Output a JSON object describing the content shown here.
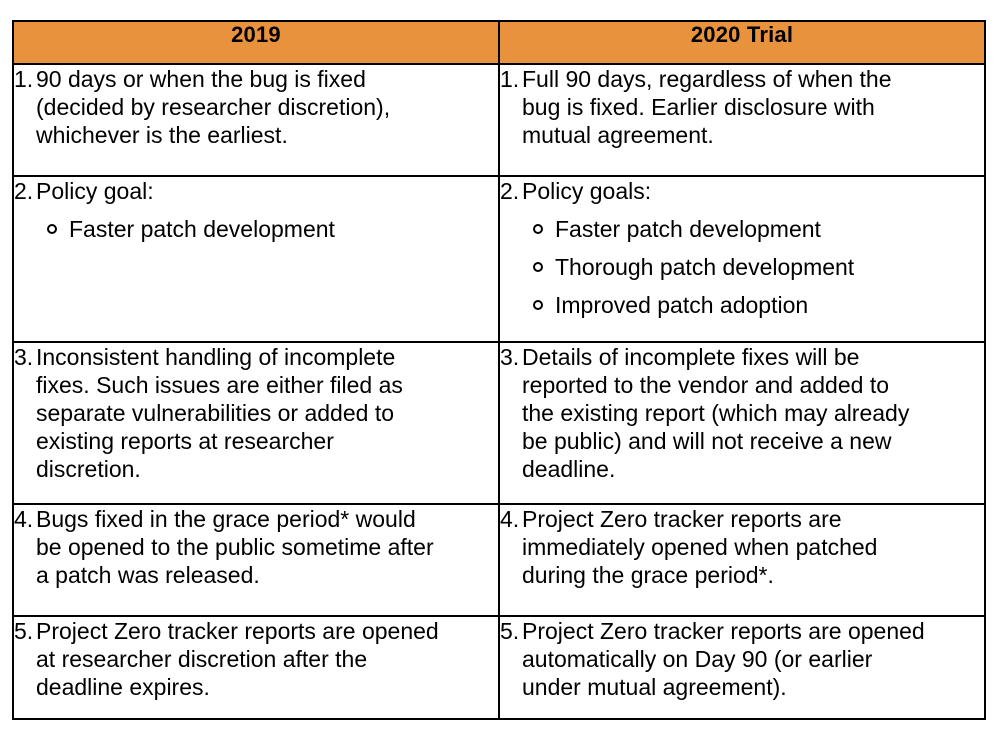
{
  "colors": {
    "header_bg": "#E8923D",
    "border": "#000000",
    "text": "#000000",
    "page_bg": "#FFFFFF"
  },
  "table": {
    "columns": [
      {
        "label": "2019"
      },
      {
        "label": "2020 Trial"
      }
    ],
    "rows": [
      {
        "left": {
          "num": "1.",
          "text": "90 days or when the bug is fixed\n(decided by researcher discretion),\nwhichever is the earliest."
        },
        "right": {
          "num": "1.",
          "text": "Full 90 days, regardless of when the\nbug is fixed. Earlier disclosure with\nmutual agreement."
        }
      },
      {
        "left": {
          "num": "2.",
          "text": "Policy goal:",
          "bullets": [
            "Faster patch development"
          ]
        },
        "right": {
          "num": "2.",
          "text": "Policy goals:",
          "bullets": [
            "Faster patch development",
            "Thorough patch development",
            "Improved patch adoption"
          ]
        }
      },
      {
        "left": {
          "num": "3.",
          "text": "Inconsistent handling of incomplete\nfixes. Such issues are either filed as\nseparate vulnerabilities or added to\nexisting reports at researcher\ndiscretion."
        },
        "right": {
          "num": "3.",
          "text": "Details of incomplete fixes will be\nreported to the vendor and added to\nthe existing report (which may already\nbe public) and will not receive a new\ndeadline."
        }
      },
      {
        "left": {
          "num": "4.",
          "text": "Bugs fixed in the grace period* would\nbe opened to the public sometime after\na patch was released."
        },
        "right": {
          "num": "4.",
          "text": "Project Zero tracker reports are\nimmediately opened when patched\nduring the grace period*."
        }
      },
      {
        "left": {
          "num": "5.",
          "text": "Project Zero tracker reports are opened\nat researcher discretion after the\ndeadline expires."
        },
        "right": {
          "num": "5.",
          "text": "Project Zero tracker reports are opened\nautomatically on Day 90 (or earlier\nunder mutual agreement)."
        }
      }
    ]
  }
}
